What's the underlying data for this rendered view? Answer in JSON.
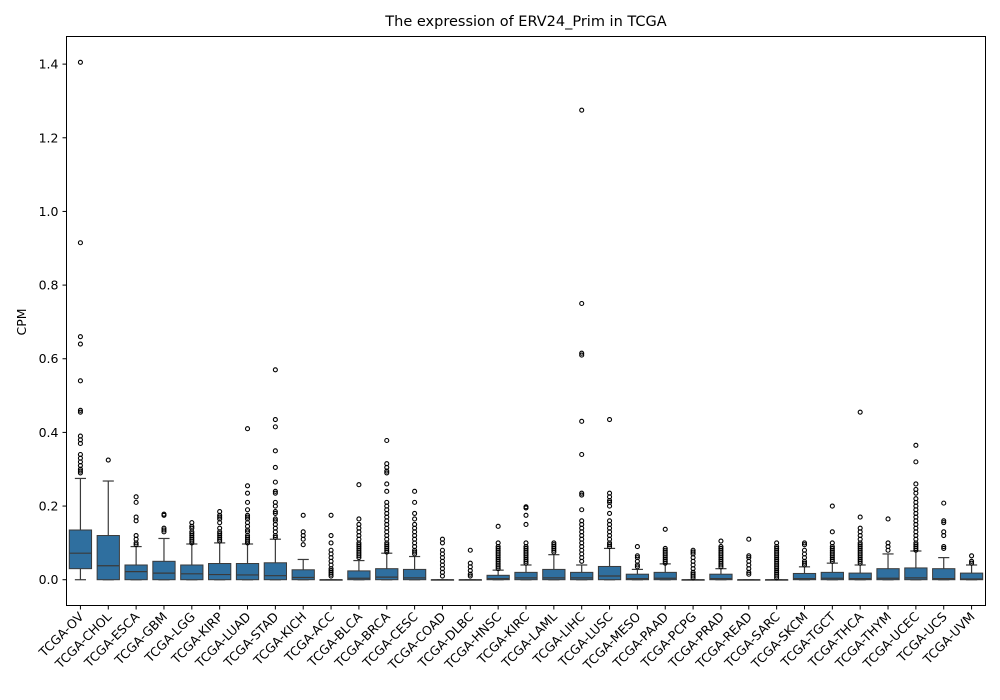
{
  "chart_data": {
    "type": "box",
    "title": "The expression of ERV24_Prim in TCGA",
    "xlabel": "",
    "ylabel": "CPM",
    "ylim": [
      -0.07,
      1.475
    ],
    "yticks": [
      "0.0",
      "0.2",
      "0.4",
      "0.6",
      "0.8",
      "1.0",
      "1.2",
      "1.4"
    ],
    "ytick_values": [
      0.0,
      0.2,
      0.4,
      0.6,
      0.8,
      1.0,
      1.2,
      1.4
    ],
    "box_color": "#2f6f9f",
    "grid": false,
    "categories": [
      "TCGA-OV",
      "TCGA-CHOL",
      "TCGA-ESCA",
      "TCGA-GBM",
      "TCGA-LGG",
      "TCGA-KIRP",
      "TCGA-LUAD",
      "TCGA-STAD",
      "TCGA-KICH",
      "TCGA-ACC",
      "TCGA-BLCA",
      "TCGA-BRCA",
      "TCGA-CESC",
      "TCGA-COAD",
      "TCGA-DLBC",
      "TCGA-HNSC",
      "TCGA-KIRC",
      "TCGA-LAML",
      "TCGA-LIHC",
      "TCGA-LUSC",
      "TCGA-MESO",
      "TCGA-PAAD",
      "TCGA-PCPG",
      "TCGA-PRAD",
      "TCGA-READ",
      "TCGA-SARC",
      "TCGA-SKCM",
      "TCGA-TGCT",
      "TCGA-THCA",
      "TCGA-THYM",
      "TCGA-UCEC",
      "TCGA-UCS",
      "TCGA-UVM"
    ],
    "boxes": [
      {
        "whislo": 0.0,
        "q1": 0.03,
        "med": 0.072,
        "q3": 0.135,
        "whishi": 0.275,
        "fliers": [
          1.405,
          0.915,
          0.66,
          0.64,
          0.54,
          0.46,
          0.455,
          0.39,
          0.38,
          0.37,
          0.34,
          0.33,
          0.32,
          0.31,
          0.3,
          0.295,
          0.29
        ]
      },
      {
        "whislo": 0.0,
        "q1": 0.0,
        "med": 0.038,
        "q3": 0.12,
        "whishi": 0.268,
        "fliers": [
          0.325
        ]
      },
      {
        "whislo": 0.0,
        "q1": 0.0,
        "med": 0.022,
        "q3": 0.04,
        "whishi": 0.09,
        "fliers": [
          0.225,
          0.21,
          0.17,
          0.16,
          0.12,
          0.11,
          0.1,
          0.095
        ]
      },
      {
        "whislo": 0.0,
        "q1": 0.0,
        "med": 0.018,
        "q3": 0.05,
        "whishi": 0.112,
        "fliers": [
          0.178,
          0.175,
          0.14,
          0.135,
          0.13
        ]
      },
      {
        "whislo": 0.0,
        "q1": 0.0,
        "med": 0.016,
        "q3": 0.04,
        "whishi": 0.097,
        "fliers": [
          0.155,
          0.145,
          0.14,
          0.13,
          0.125,
          0.12,
          0.115,
          0.11,
          0.105,
          0.1
        ]
      },
      {
        "whislo": 0.0,
        "q1": 0.0,
        "med": 0.014,
        "q3": 0.044,
        "whishi": 0.1,
        "fliers": [
          0.185,
          0.175,
          0.17,
          0.165,
          0.155,
          0.14,
          0.13,
          0.125,
          0.12,
          0.115,
          0.11,
          0.105
        ]
      },
      {
        "whislo": 0.0,
        "q1": 0.0,
        "med": 0.013,
        "q3": 0.044,
        "whishi": 0.097,
        "fliers": [
          0.41,
          0.255,
          0.235,
          0.21,
          0.19,
          0.175,
          0.17,
          0.165,
          0.155,
          0.145,
          0.135,
          0.13,
          0.12,
          0.115,
          0.11,
          0.105,
          0.1
        ]
      },
      {
        "whislo": 0.0,
        "q1": 0.0,
        "med": 0.011,
        "q3": 0.046,
        "whishi": 0.11,
        "fliers": [
          0.57,
          0.435,
          0.415,
          0.35,
          0.305,
          0.265,
          0.24,
          0.235,
          0.21,
          0.2,
          0.185,
          0.18,
          0.165,
          0.16,
          0.15,
          0.14,
          0.13,
          0.12,
          0.115
        ]
      },
      {
        "whislo": 0.0,
        "q1": 0.0,
        "med": 0.006,
        "q3": 0.027,
        "whishi": 0.055,
        "fliers": [
          0.175,
          0.13,
          0.12,
          0.11,
          0.095
        ]
      },
      {
        "whislo": 0.0,
        "q1": 0.0,
        "med": 0.0,
        "q3": 0.0,
        "whishi": 0.0,
        "fliers": [
          0.175,
          0.12,
          0.1,
          0.08,
          0.07,
          0.06,
          0.05,
          0.04,
          0.03,
          0.025,
          0.02,
          0.015,
          0.01
        ]
      },
      {
        "whislo": 0.0,
        "q1": 0.0,
        "med": 0.004,
        "q3": 0.024,
        "whishi": 0.052,
        "fliers": [
          0.258,
          0.165,
          0.15,
          0.14,
          0.13,
          0.12,
          0.11,
          0.1,
          0.095,
          0.09,
          0.085,
          0.08,
          0.075,
          0.07,
          0.065,
          0.06
        ]
      },
      {
        "whislo": 0.0,
        "q1": 0.0,
        "med": 0.007,
        "q3": 0.03,
        "whishi": 0.072,
        "fliers": [
          0.378,
          0.315,
          0.305,
          0.295,
          0.29,
          0.26,
          0.24,
          0.21,
          0.2,
          0.19,
          0.18,
          0.17,
          0.16,
          0.15,
          0.14,
          0.13,
          0.12,
          0.11,
          0.1,
          0.095,
          0.09,
          0.085,
          0.08,
          0.075
        ]
      },
      {
        "whislo": 0.0,
        "q1": 0.0,
        "med": 0.005,
        "q3": 0.028,
        "whishi": 0.063,
        "fliers": [
          0.24,
          0.21,
          0.18,
          0.165,
          0.15,
          0.14,
          0.13,
          0.12,
          0.11,
          0.1,
          0.09,
          0.08,
          0.075,
          0.07
        ]
      },
      {
        "whislo": 0.0,
        "q1": 0.0,
        "med": 0.0,
        "q3": 0.0,
        "whishi": 0.0,
        "fliers": [
          0.11,
          0.1,
          0.08,
          0.07,
          0.06,
          0.05,
          0.04,
          0.03,
          0.02,
          0.01
        ]
      },
      {
        "whislo": 0.0,
        "q1": 0.0,
        "med": 0.0,
        "q3": 0.0,
        "whishi": 0.0,
        "fliers": [
          0.08,
          0.045,
          0.035,
          0.025,
          0.015,
          0.01
        ]
      },
      {
        "whislo": 0.0,
        "q1": 0.0,
        "med": 0.003,
        "q3": 0.012,
        "whishi": 0.026,
        "fliers": [
          0.145,
          0.1,
          0.09,
          0.085,
          0.08,
          0.075,
          0.07,
          0.065,
          0.06,
          0.055,
          0.05,
          0.045,
          0.04,
          0.035,
          0.03
        ]
      },
      {
        "whislo": 0.0,
        "q1": 0.0,
        "med": 0.005,
        "q3": 0.02,
        "whishi": 0.04,
        "fliers": [
          0.198,
          0.195,
          0.175,
          0.15,
          0.1,
          0.09,
          0.085,
          0.08,
          0.075,
          0.07,
          0.065,
          0.06,
          0.055,
          0.05,
          0.045
        ]
      },
      {
        "whislo": 0.0,
        "q1": 0.0,
        "med": 0.005,
        "q3": 0.028,
        "whishi": 0.068,
        "fliers": [
          0.1,
          0.095,
          0.09,
          0.085,
          0.08,
          0.075
        ]
      },
      {
        "whislo": 0.0,
        "q1": 0.0,
        "med": 0.005,
        "q3": 0.02,
        "whishi": 0.04,
        "fliers": [
          1.275,
          0.75,
          0.615,
          0.61,
          0.43,
          0.34,
          0.235,
          0.23,
          0.19,
          0.16,
          0.15,
          0.14,
          0.13,
          0.12,
          0.11,
          0.1,
          0.09,
          0.08,
          0.07,
          0.06,
          0.05
        ]
      },
      {
        "whislo": 0.0,
        "q1": 0.0,
        "med": 0.01,
        "q3": 0.036,
        "whishi": 0.085,
        "fliers": [
          0.435,
          0.235,
          0.225,
          0.215,
          0.21,
          0.2,
          0.18,
          0.16,
          0.15,
          0.14,
          0.13,
          0.12,
          0.11,
          0.1,
          0.095,
          0.09
        ]
      },
      {
        "whislo": 0.0,
        "q1": 0.0,
        "med": 0.003,
        "q3": 0.015,
        "whishi": 0.028,
        "fliers": [
          0.09,
          0.065,
          0.06,
          0.05,
          0.04,
          0.035
        ]
      },
      {
        "whislo": 0.0,
        "q1": 0.0,
        "med": 0.004,
        "q3": 0.02,
        "whishi": 0.043,
        "fliers": [
          0.137,
          0.085,
          0.08,
          0.075,
          0.07,
          0.065,
          0.06,
          0.055,
          0.05,
          0.045
        ]
      },
      {
        "whislo": 0.0,
        "q1": 0.0,
        "med": 0.0,
        "q3": 0.0,
        "whishi": 0.0,
        "fliers": [
          0.08,
          0.075,
          0.07,
          0.06,
          0.05,
          0.04,
          0.03,
          0.02,
          0.015,
          0.01,
          0.005
        ]
      },
      {
        "whislo": 0.0,
        "q1": 0.0,
        "med": 0.003,
        "q3": 0.015,
        "whishi": 0.03,
        "fliers": [
          0.105,
          0.09,
          0.085,
          0.08,
          0.075,
          0.07,
          0.065,
          0.06,
          0.055,
          0.05,
          0.045,
          0.04,
          0.035
        ]
      },
      {
        "whislo": 0.0,
        "q1": 0.0,
        "med": 0.0,
        "q3": 0.0,
        "whishi": 0.0,
        "fliers": [
          0.11,
          0.065,
          0.06,
          0.05,
          0.04,
          0.03,
          0.02,
          0.015
        ]
      },
      {
        "whislo": 0.0,
        "q1": 0.0,
        "med": 0.0,
        "q3": 0.0,
        "whishi": 0.0,
        "fliers": [
          0.1,
          0.09,
          0.085,
          0.08,
          0.075,
          0.07,
          0.065,
          0.06,
          0.055,
          0.05,
          0.045,
          0.04,
          0.035,
          0.03,
          0.025,
          0.02,
          0.015,
          0.01,
          0.005
        ]
      },
      {
        "whislo": 0.0,
        "q1": 0.0,
        "med": 0.003,
        "q3": 0.017,
        "whishi": 0.035,
        "fliers": [
          0.1,
          0.095,
          0.08,
          0.07,
          0.06,
          0.05,
          0.045,
          0.04
        ]
      },
      {
        "whislo": 0.0,
        "q1": 0.0,
        "med": 0.004,
        "q3": 0.02,
        "whishi": 0.045,
        "fliers": [
          0.2,
          0.13,
          0.1,
          0.09,
          0.085,
          0.08,
          0.075,
          0.07,
          0.065,
          0.06,
          0.055,
          0.05
        ]
      },
      {
        "whislo": 0.0,
        "q1": 0.0,
        "med": 0.003,
        "q3": 0.018,
        "whishi": 0.04,
        "fliers": [
          0.455,
          0.17,
          0.14,
          0.13,
          0.12,
          0.11,
          0.1,
          0.095,
          0.09,
          0.085,
          0.08,
          0.075,
          0.07,
          0.065,
          0.06,
          0.055,
          0.05,
          0.045
        ]
      },
      {
        "whislo": 0.0,
        "q1": 0.0,
        "med": 0.004,
        "q3": 0.03,
        "whishi": 0.07,
        "fliers": [
          0.165,
          0.1,
          0.09,
          0.08
        ]
      },
      {
        "whislo": 0.0,
        "q1": 0.0,
        "med": 0.005,
        "q3": 0.032,
        "whishi": 0.078,
        "fliers": [
          0.365,
          0.32,
          0.26,
          0.245,
          0.235,
          0.22,
          0.21,
          0.2,
          0.19,
          0.18,
          0.17,
          0.16,
          0.15,
          0.14,
          0.13,
          0.12,
          0.11,
          0.1,
          0.095,
          0.09,
          0.085,
          0.08
        ]
      },
      {
        "whislo": 0.0,
        "q1": 0.0,
        "med": 0.003,
        "q3": 0.03,
        "whishi": 0.06,
        "fliers": [
          0.208,
          0.16,
          0.155,
          0.13,
          0.12,
          0.09,
          0.085
        ]
      },
      {
        "whislo": 0.0,
        "q1": 0.0,
        "med": 0.002,
        "q3": 0.018,
        "whishi": 0.04,
        "fliers": [
          0.065,
          0.05,
          0.045
        ]
      }
    ]
  }
}
